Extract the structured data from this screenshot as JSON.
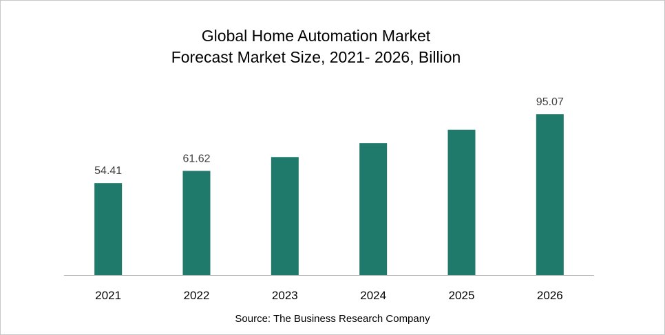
{
  "chart_data": {
    "type": "bar",
    "title_line1": "Global Home Automation Market",
    "title_line2": "Forecast Market Size, 2021- 2026, Billion",
    "categories": [
      "2021",
      "2022",
      "2023",
      "2024",
      "2025",
      "2026"
    ],
    "values": [
      54.41,
      61.62,
      69.8,
      78.0,
      85.9,
      95.07
    ],
    "data_labels": [
      "54.41",
      "61.62",
      "",
      "",
      "",
      "95.07"
    ],
    "ylim": [
      0,
      100
    ],
    "xlabel": "",
    "ylabel": "",
    "grid": false,
    "legend": false,
    "bar_color": "#1f7a6b"
  },
  "source": "Source: The Business Research Company"
}
